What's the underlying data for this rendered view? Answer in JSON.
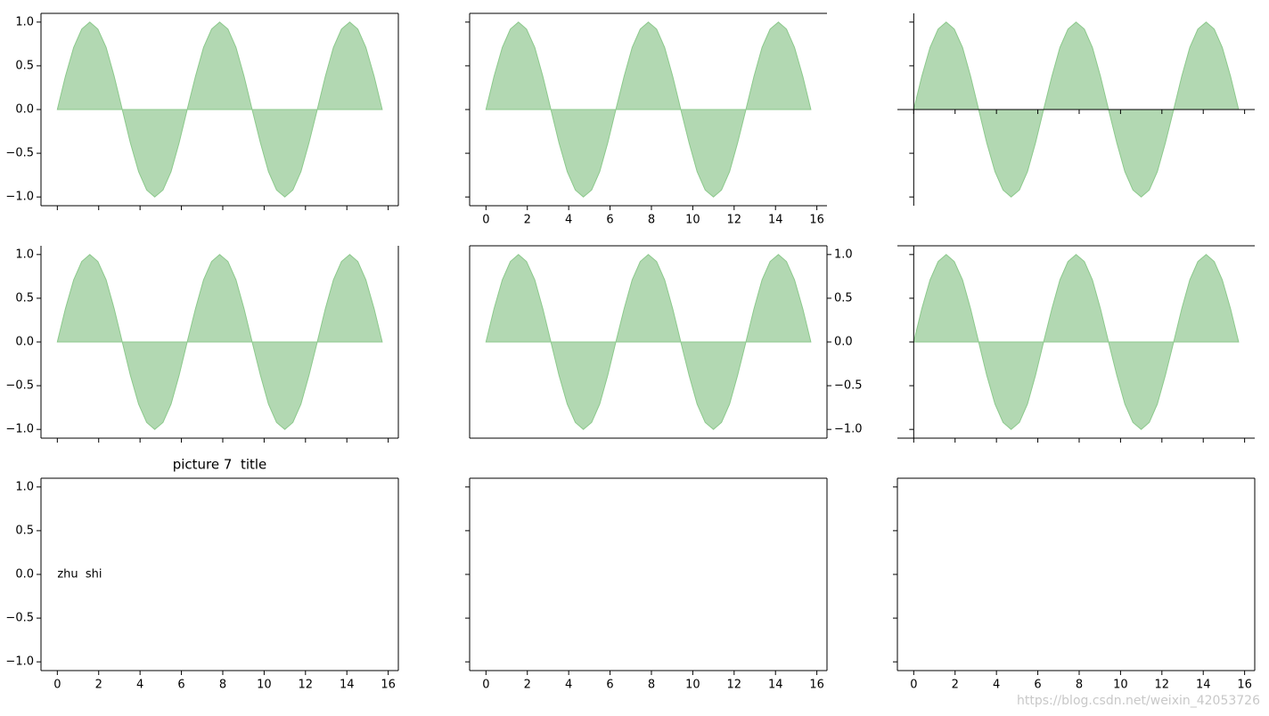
{
  "chart_data": [
    {
      "type": "area",
      "x": [
        0,
        0.39,
        0.79,
        1.18,
        1.57,
        1.96,
        2.36,
        2.75,
        3.14,
        3.53,
        3.93,
        4.32,
        4.71,
        5.11,
        5.5,
        5.89,
        6.28,
        6.68,
        7.07,
        7.46,
        7.85,
        8.25,
        8.64,
        9.03,
        9.42,
        9.82,
        10.21,
        10.6,
        11,
        11.39,
        11.78,
        12.17,
        12.57,
        12.96,
        13.35,
        13.74,
        14.14,
        14.53,
        14.92,
        15.32,
        15.71
      ],
      "values": [
        0,
        0.38,
        0.71,
        0.92,
        1,
        0.92,
        0.71,
        0.38,
        0,
        -0.38,
        -0.71,
        -0.92,
        -1,
        -0.92,
        -0.71,
        -0.38,
        0,
        0.38,
        0.71,
        0.92,
        1,
        0.92,
        0.71,
        0.38,
        0,
        -0.38,
        -0.71,
        -0.92,
        -1,
        -0.92,
        -0.71,
        -0.38,
        0,
        0.38,
        0.71,
        0.92,
        1,
        0.92,
        0.71,
        0.38,
        0
      ],
      "color": "#b2d8b2",
      "edgecolor": "#8cc98c",
      "xlim": [
        -0.79,
        16.49
      ],
      "ylim": [
        -1.1,
        1.1
      ],
      "xticks": [
        0,
        2,
        4,
        6,
        8,
        10,
        12,
        14,
        16
      ],
      "yticks": [
        {
          "value": -1,
          "label": "−1.0"
        },
        {
          "value": -0.5,
          "label": "−0.5"
        },
        {
          "value": 0,
          "label": "0.0"
        },
        {
          "value": 0.5,
          "label": "0.5"
        },
        {
          "value": 1,
          "label": "1.0"
        }
      ],
      "spines": [
        "left",
        "right",
        "top",
        "bottom"
      ],
      "xtick_labels": false,
      "ytick_side": "left",
      "ytick_labels": true
    },
    {
      "type": "area",
      "x": [
        0,
        0.39,
        0.79,
        1.18,
        1.57,
        1.96,
        2.36,
        2.75,
        3.14,
        3.53,
        3.93,
        4.32,
        4.71,
        5.11,
        5.5,
        5.89,
        6.28,
        6.68,
        7.07,
        7.46,
        7.85,
        8.25,
        8.64,
        9.03,
        9.42,
        9.82,
        10.21,
        10.6,
        11,
        11.39,
        11.78,
        12.17,
        12.57,
        12.96,
        13.35,
        13.74,
        14.14,
        14.53,
        14.92,
        15.32,
        15.71
      ],
      "values": [
        0,
        0.38,
        0.71,
        0.92,
        1,
        0.92,
        0.71,
        0.38,
        0,
        -0.38,
        -0.71,
        -0.92,
        -1,
        -0.92,
        -0.71,
        -0.38,
        0,
        0.38,
        0.71,
        0.92,
        1,
        0.92,
        0.71,
        0.38,
        0,
        -0.38,
        -0.71,
        -0.92,
        -1,
        -0.92,
        -0.71,
        -0.38,
        0,
        0.38,
        0.71,
        0.92,
        1,
        0.92,
        0.71,
        0.38,
        0
      ],
      "color": "#b2d8b2",
      "edgecolor": "#8cc98c",
      "xlim": [
        -0.79,
        16.49
      ],
      "ylim": [
        -1.1,
        1.1
      ],
      "xticks": [
        0,
        2,
        4,
        6,
        8,
        10,
        12,
        14,
        16
      ],
      "yticks": [
        -1,
        -0.5,
        0,
        0.5,
        1
      ],
      "spines": [
        "left",
        "top",
        "bottom"
      ],
      "xtick_labels": true,
      "ytick_side": "left",
      "ytick_labels": false
    },
    {
      "type": "area",
      "x": [
        0,
        0.39,
        0.79,
        1.18,
        1.57,
        1.96,
        2.36,
        2.75,
        3.14,
        3.53,
        3.93,
        4.32,
        4.71,
        5.11,
        5.5,
        5.89,
        6.28,
        6.68,
        7.07,
        7.46,
        7.85,
        8.25,
        8.64,
        9.03,
        9.42,
        9.82,
        10.21,
        10.6,
        11,
        11.39,
        11.78,
        12.17,
        12.57,
        12.96,
        13.35,
        13.74,
        14.14,
        14.53,
        14.92,
        15.32,
        15.71
      ],
      "values": [
        0,
        0.38,
        0.71,
        0.92,
        1,
        0.92,
        0.71,
        0.38,
        0,
        -0.38,
        -0.71,
        -0.92,
        -1,
        -0.92,
        -0.71,
        -0.38,
        0,
        0.38,
        0.71,
        0.92,
        1,
        0.92,
        0.71,
        0.38,
        0,
        -0.38,
        -0.71,
        -0.92,
        -1,
        -0.92,
        -0.71,
        -0.38,
        0,
        0.38,
        0.71,
        0.92,
        1,
        0.92,
        0.71,
        0.38,
        0
      ],
      "color": "#b2d8b2",
      "edgecolor": "#8cc98c",
      "xlim": [
        -0.79,
        16.49
      ],
      "ylim": [
        -1.1,
        1.1
      ],
      "xticks": [
        0,
        2,
        4,
        6,
        8,
        10,
        12,
        14,
        16
      ],
      "yticks": [
        -1,
        -0.5,
        0,
        0.5,
        1
      ],
      "spines": [
        "left",
        "bottom"
      ],
      "spine_position": {
        "left": 0,
        "bottom": 0
      },
      "xtick_labels": false,
      "ytick_side": "left",
      "ytick_labels": false
    },
    {
      "type": "area",
      "x": [
        0,
        0.39,
        0.79,
        1.18,
        1.57,
        1.96,
        2.36,
        2.75,
        3.14,
        3.53,
        3.93,
        4.32,
        4.71,
        5.11,
        5.5,
        5.89,
        6.28,
        6.68,
        7.07,
        7.46,
        7.85,
        8.25,
        8.64,
        9.03,
        9.42,
        9.82,
        10.21,
        10.6,
        11,
        11.39,
        11.78,
        12.17,
        12.57,
        12.96,
        13.35,
        13.74,
        14.14,
        14.53,
        14.92,
        15.32,
        15.71
      ],
      "values": [
        0,
        0.38,
        0.71,
        0.92,
        1,
        0.92,
        0.71,
        0.38,
        0,
        -0.38,
        -0.71,
        -0.92,
        -1,
        -0.92,
        -0.71,
        -0.38,
        0,
        0.38,
        0.71,
        0.92,
        1,
        0.92,
        0.71,
        0.38,
        0,
        -0.38,
        -0.71,
        -0.92,
        -1,
        -0.92,
        -0.71,
        -0.38,
        0,
        0.38,
        0.71,
        0.92,
        1,
        0.92,
        0.71,
        0.38,
        0
      ],
      "color": "#b2d8b2",
      "edgecolor": "#8cc98c",
      "xlim": [
        -0.79,
        16.49
      ],
      "ylim": [
        -1.1,
        1.1
      ],
      "xticks": [
        0,
        2,
        4,
        6,
        8,
        10,
        12,
        14,
        16
      ],
      "yticks": [
        {
          "value": -1,
          "label": "−1.0"
        },
        {
          "value": -0.5,
          "label": "−0.5"
        },
        {
          "value": 0,
          "label": "0.0"
        },
        {
          "value": 0.5,
          "label": "0.5"
        },
        {
          "value": 1,
          "label": "1.0"
        }
      ],
      "spines": [
        "left",
        "right",
        "bottom"
      ],
      "xtick_labels": false,
      "ytick_side": "left",
      "ytick_labels": true
    },
    {
      "type": "area",
      "x": [
        0,
        0.39,
        0.79,
        1.18,
        1.57,
        1.96,
        2.36,
        2.75,
        3.14,
        3.53,
        3.93,
        4.32,
        4.71,
        5.11,
        5.5,
        5.89,
        6.28,
        6.68,
        7.07,
        7.46,
        7.85,
        8.25,
        8.64,
        9.03,
        9.42,
        9.82,
        10.21,
        10.6,
        11,
        11.39,
        11.78,
        12.17,
        12.57,
        12.96,
        13.35,
        13.74,
        14.14,
        14.53,
        14.92,
        15.32,
        15.71
      ],
      "values": [
        0,
        0.38,
        0.71,
        0.92,
        1,
        0.92,
        0.71,
        0.38,
        0,
        -0.38,
        -0.71,
        -0.92,
        -1,
        -0.92,
        -0.71,
        -0.38,
        0,
        0.38,
        0.71,
        0.92,
        1,
        0.92,
        0.71,
        0.38,
        0,
        -0.38,
        -0.71,
        -0.92,
        -1,
        -0.92,
        -0.71,
        -0.38,
        0,
        0.38,
        0.71,
        0.92,
        1,
        0.92,
        0.71,
        0.38,
        0
      ],
      "color": "#b2d8b2",
      "edgecolor": "#8cc98c",
      "xlim": [
        -0.79,
        16.49
      ],
      "ylim": [
        -1.1,
        1.1
      ],
      "xticks": [],
      "yticks": [
        {
          "value": -1,
          "label": "−1.0"
        },
        {
          "value": -0.5,
          "label": "−0.5"
        },
        {
          "value": 0,
          "label": "0.0"
        },
        {
          "value": 0.5,
          "label": "0.5"
        },
        {
          "value": 1,
          "label": "1.0"
        }
      ],
      "spines": [
        "left",
        "right",
        "top",
        "bottom"
      ],
      "xtick_labels": false,
      "ytick_side": "right",
      "ytick_labels": true
    },
    {
      "type": "area",
      "x": [
        0,
        0.39,
        0.79,
        1.18,
        1.57,
        1.96,
        2.36,
        2.75,
        3.14,
        3.53,
        3.93,
        4.32,
        4.71,
        5.11,
        5.5,
        5.89,
        6.28,
        6.68,
        7.07,
        7.46,
        7.85,
        8.25,
        8.64,
        9.03,
        9.42,
        9.82,
        10.21,
        10.6,
        11,
        11.39,
        11.78,
        12.17,
        12.57,
        12.96,
        13.35,
        13.74,
        14.14,
        14.53,
        14.92,
        15.32,
        15.71
      ],
      "values": [
        0,
        0.38,
        0.71,
        0.92,
        1,
        0.92,
        0.71,
        0.38,
        0,
        -0.38,
        -0.71,
        -0.92,
        -1,
        -0.92,
        -0.71,
        -0.38,
        0,
        0.38,
        0.71,
        0.92,
        1,
        0.92,
        0.71,
        0.38,
        0,
        -0.38,
        -0.71,
        -0.92,
        -1,
        -0.92,
        -0.71,
        -0.38,
        0,
        0.38,
        0.71,
        0.92,
        1,
        0.92,
        0.71,
        0.38,
        0
      ],
      "color": "#b2d8b2",
      "edgecolor": "#8cc98c",
      "xlim": [
        -0.79,
        16.49
      ],
      "ylim": [
        -1.1,
        1.1
      ],
      "xticks": [
        0,
        2,
        4,
        6,
        8,
        10,
        12,
        14,
        16
      ],
      "yticks": [
        -1,
        -0.5,
        0,
        0.5,
        1
      ],
      "spines": [
        "left",
        "top",
        "bottom"
      ],
      "spine_position": {
        "left": 0
      },
      "xtick_labels": false,
      "ytick_side": "left",
      "ytick_labels": false
    },
    {
      "type": "blank",
      "title": "picture 7  title",
      "annotation": {
        "text": "zhu  shi",
        "x": 0,
        "y": 0
      },
      "xlim": [
        -0.79,
        16.49
      ],
      "ylim": [
        -1.1,
        1.1
      ],
      "xticks": [
        0,
        2,
        4,
        6,
        8,
        10,
        12,
        14,
        16
      ],
      "yticks": [
        {
          "value": -1,
          "label": "−1.0"
        },
        {
          "value": -0.5,
          "label": "−0.5"
        },
        {
          "value": 0,
          "label": "0.0"
        },
        {
          "value": 0.5,
          "label": "0.5"
        },
        {
          "value": 1,
          "label": "1.0"
        }
      ],
      "spines": [
        "left",
        "right",
        "top",
        "bottom"
      ],
      "xtick_labels": true,
      "ytick_side": "left",
      "ytick_labels": true
    },
    {
      "type": "blank",
      "xlim": [
        -0.79,
        16.49
      ],
      "ylim": [
        -1.1,
        1.1
      ],
      "xticks": [
        0,
        2,
        4,
        6,
        8,
        10,
        12,
        14,
        16
      ],
      "yticks": [
        -1,
        -0.5,
        0,
        0.5,
        1
      ],
      "spines": [
        "left",
        "right",
        "top",
        "bottom"
      ],
      "xtick_labels": true,
      "ytick_side": "left",
      "ytick_labels": false
    },
    {
      "type": "blank",
      "xlim": [
        -0.79,
        16.49
      ],
      "ylim": [
        -1.1,
        1.1
      ],
      "xticks": [
        0,
        2,
        4,
        6,
        8,
        10,
        12,
        14,
        16
      ],
      "yticks": [
        -1,
        -0.5,
        0,
        0.5,
        1
      ],
      "spines": [
        "left",
        "right",
        "top",
        "bottom"
      ],
      "xtick_labels": true,
      "ytick_side": "left",
      "ytick_labels": false
    }
  ],
  "watermark": "https://blog.csdn.net/weixin_42053726"
}
